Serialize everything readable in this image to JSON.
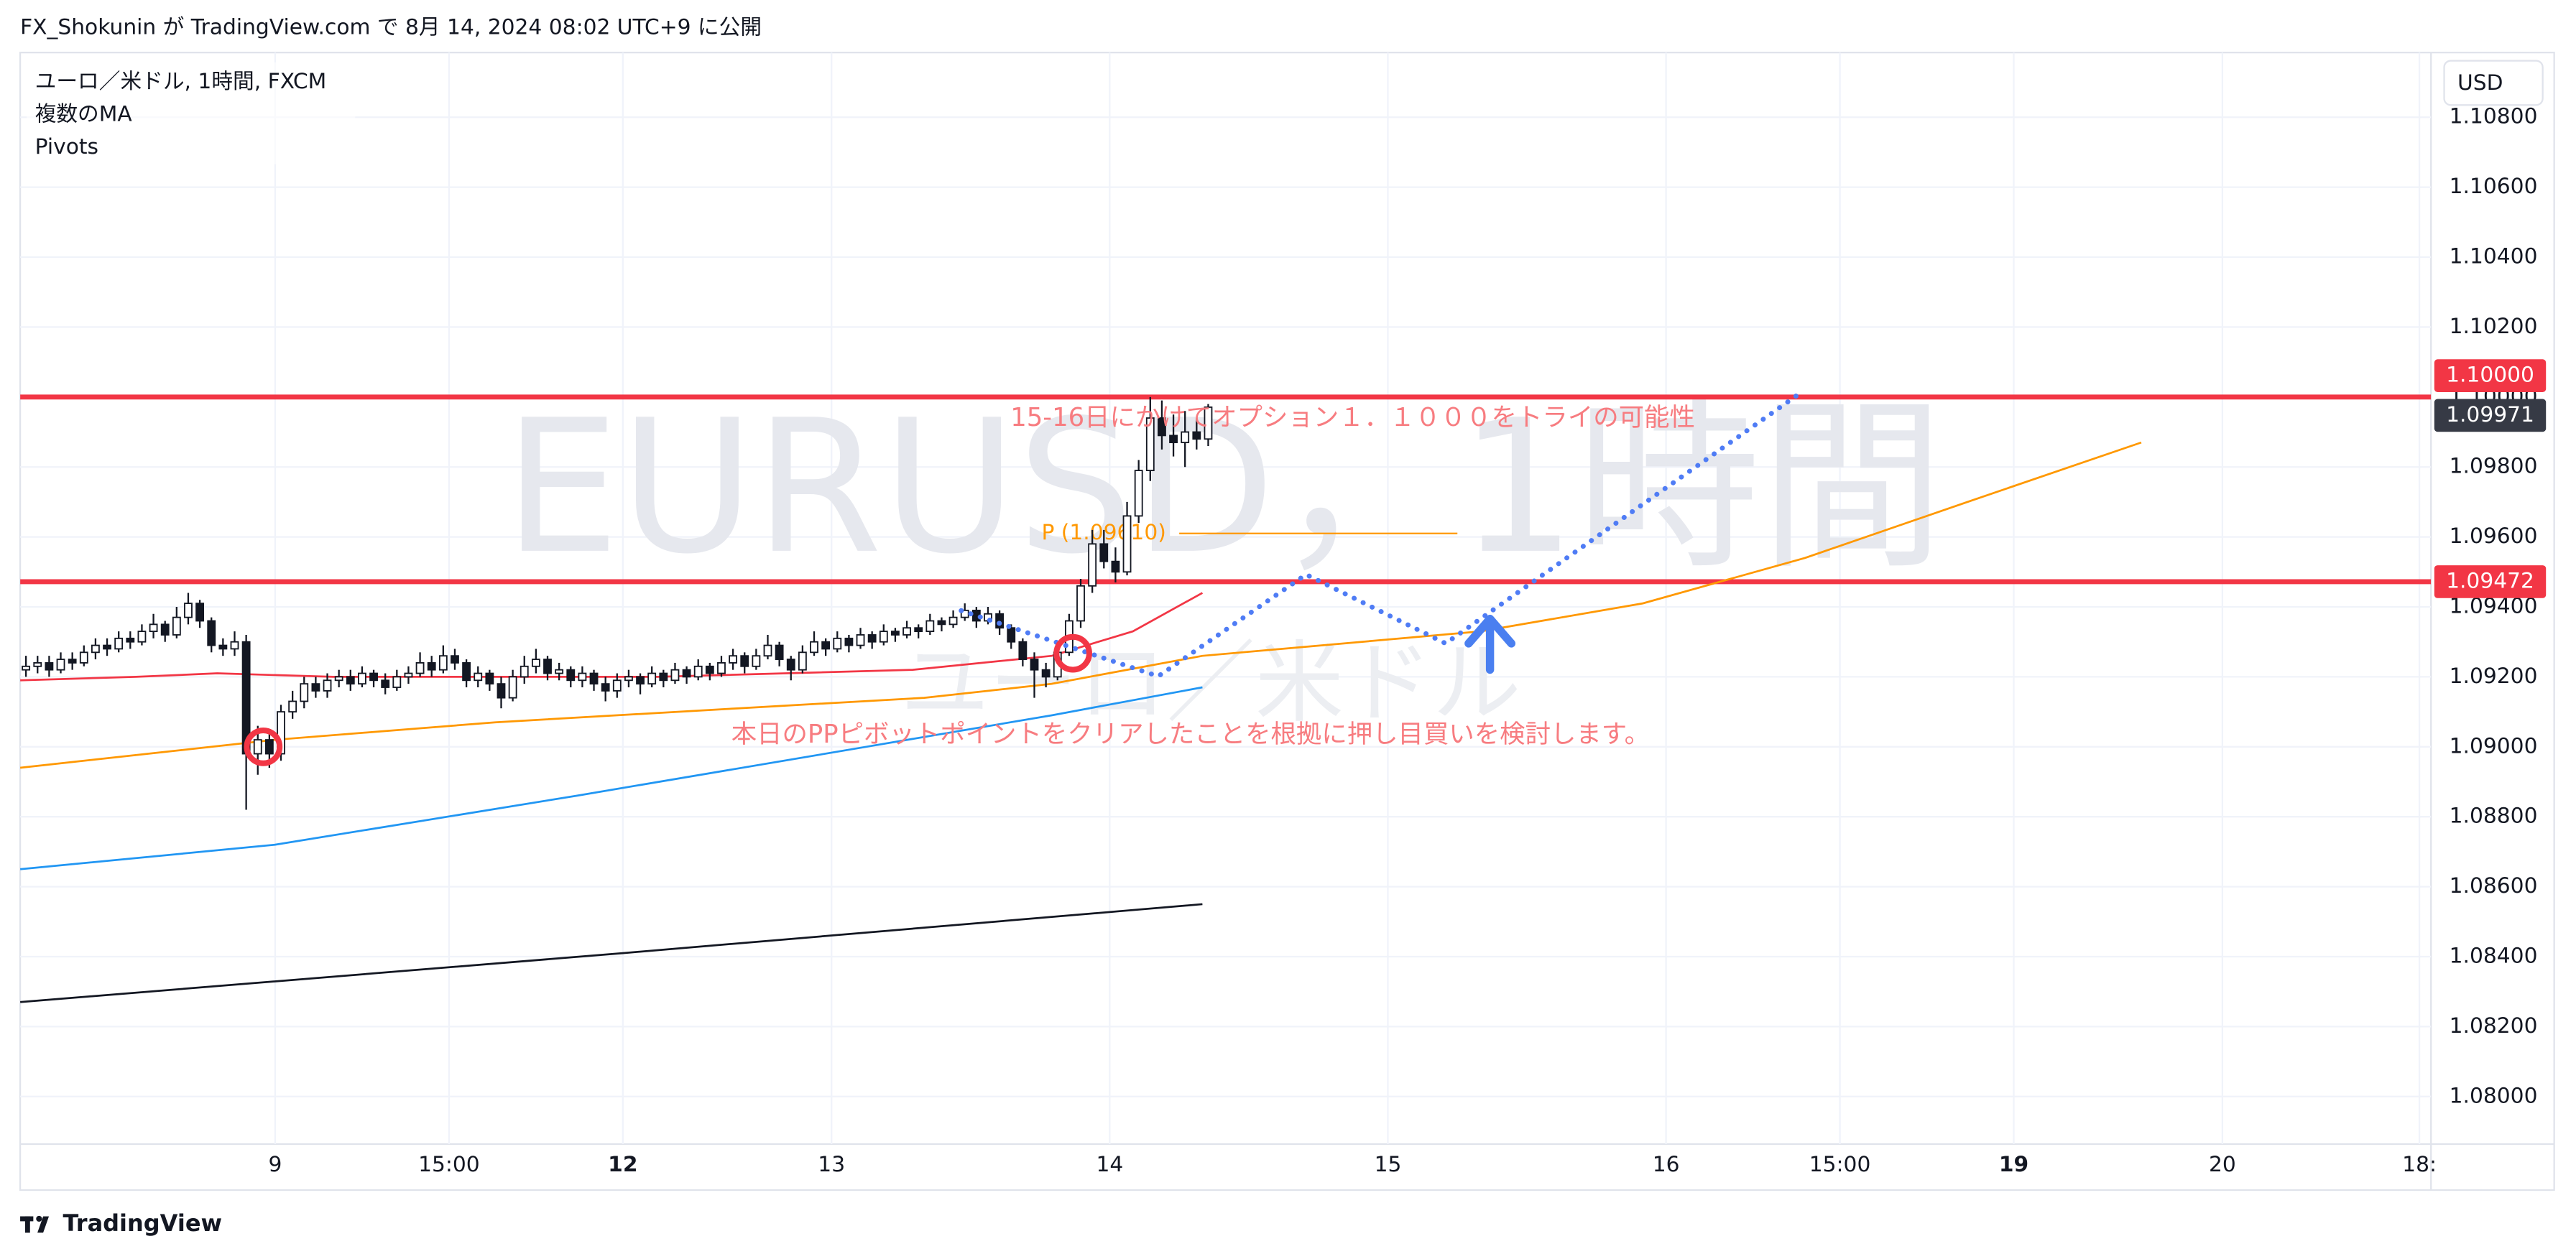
{
  "chart_data": {
    "type": "candlestick",
    "published_by": "FX_Shokunin が TradingView.com で 8月 14, 2024 08:02 UTC+9 に公開",
    "symbol_legend": "ユーロ／米ドル, 1時間, FXCM",
    "indicators": [
      "複数のMA",
      "Pivots"
    ],
    "currency": "USD",
    "watermark": "EURUSD，1時間",
    "watermark_sub": "ユーロ／米ドル",
    "brand": "TradingView",
    "annotations": [
      "15-16日にかけてオプション１．１０００をトライの可能性",
      "本日のPPピボットポイントをクリアしたことを根拠に押し目買いを検討します。"
    ],
    "up_color": "#ffffff",
    "down_color": "#131722",
    "xlim": [
      0,
      208
    ],
    "xticks": [
      {
        "value": 22,
        "label": "9"
      },
      {
        "value": 37,
        "label": "15:00"
      },
      {
        "value": 52,
        "label": "12",
        "bold": true
      },
      {
        "value": 70,
        "label": "13"
      },
      {
        "value": 94,
        "label": "14"
      },
      {
        "value": 118,
        "label": "15"
      },
      {
        "value": 142,
        "label": "16"
      },
      {
        "value": 157,
        "label": "15:00"
      },
      {
        "value": 172,
        "label": "19",
        "bold": true
      },
      {
        "value": 190,
        "label": "20"
      },
      {
        "value": 207,
        "label": "18:"
      }
    ],
    "ylim": [
      1.07864,
      1.10985
    ],
    "yticks": [
      {
        "value": 1.08,
        "label": "1.08000"
      },
      {
        "value": 1.082,
        "label": "1.08200"
      },
      {
        "value": 1.084,
        "label": "1.08400"
      },
      {
        "value": 1.086,
        "label": "1.08600"
      },
      {
        "value": 1.088,
        "label": "1.08800"
      },
      {
        "value": 1.09,
        "label": "1.09000"
      },
      {
        "value": 1.092,
        "label": "1.09200"
      },
      {
        "value": 1.094,
        "label": "1.09400"
      },
      {
        "value": 1.096,
        "label": "1.09600"
      },
      {
        "value": 1.098,
        "label": "1.09800"
      },
      {
        "value": 1.1,
        "label": "1.10000"
      },
      {
        "value": 1.102,
        "label": "1.10200"
      },
      {
        "value": 1.104,
        "label": "1.10400"
      },
      {
        "value": 1.106,
        "label": "1.10600"
      },
      {
        "value": 1.108,
        "label": "1.10800"
      }
    ],
    "grid": true,
    "candles": [
      [
        1.0922,
        1.0926,
        1.092,
        1.0923
      ],
      [
        1.0923,
        1.0926,
        1.0921,
        1.0924
      ],
      [
        1.0924,
        1.0926,
        1.092,
        1.0922
      ],
      [
        1.0922,
        1.0927,
        1.0921,
        1.0925
      ],
      [
        1.0925,
        1.0927,
        1.0922,
        1.0924
      ],
      [
        1.0924,
        1.0929,
        1.0923,
        1.0927
      ],
      [
        1.0927,
        1.0931,
        1.0925,
        1.0929
      ],
      [
        1.0929,
        1.0931,
        1.0926,
        1.0928
      ],
      [
        1.0928,
        1.0933,
        1.0927,
        1.0931
      ],
      [
        1.0931,
        1.0933,
        1.0928,
        1.093
      ],
      [
        1.093,
        1.0935,
        1.0929,
        1.0933
      ],
      [
        1.0933,
        1.0938,
        1.0931,
        1.0935
      ],
      [
        1.0935,
        1.0936,
        1.093,
        1.0932
      ],
      [
        1.0932,
        1.094,
        1.0931,
        1.0937
      ],
      [
        1.0937,
        1.0944,
        1.0935,
        1.0941
      ],
      [
        1.0941,
        1.0942,
        1.0934,
        1.0936
      ],
      [
        1.0936,
        1.0937,
        1.0927,
        1.0929
      ],
      [
        1.0929,
        1.0931,
        1.0926,
        1.0928
      ],
      [
        1.0928,
        1.0933,
        1.0926,
        1.093
      ],
      [
        1.093,
        1.0932,
        1.0882,
        1.0898
      ],
      [
        1.0898,
        1.0906,
        1.0892,
        1.0902
      ],
      [
        1.0902,
        1.0905,
        1.0894,
        1.0898
      ],
      [
        1.0898,
        1.0912,
        1.0896,
        1.091
      ],
      [
        1.091,
        1.0916,
        1.0908,
        1.0913
      ],
      [
        1.0913,
        1.092,
        1.0911,
        1.0918
      ],
      [
        1.0918,
        1.092,
        1.0914,
        1.0916
      ],
      [
        1.0916,
        1.0921,
        1.0914,
        1.0919
      ],
      [
        1.0919,
        1.0922,
        1.0917,
        1.092
      ],
      [
        1.092,
        1.0922,
        1.0916,
        1.0918
      ],
      [
        1.0918,
        1.0923,
        1.0917,
        1.0921
      ],
      [
        1.0921,
        1.0922,
        1.0917,
        1.0919
      ],
      [
        1.0919,
        1.0921,
        1.0915,
        1.0917
      ],
      [
        1.0917,
        1.0922,
        1.0916,
        1.092
      ],
      [
        1.092,
        1.0923,
        1.0918,
        1.0921
      ],
      [
        1.0921,
        1.0927,
        1.092,
        1.0924
      ],
      [
        1.0924,
        1.0926,
        1.092,
        1.0922
      ],
      [
        1.0922,
        1.0929,
        1.0921,
        1.0926
      ],
      [
        1.0926,
        1.0928,
        1.0922,
        1.0924
      ],
      [
        1.0924,
        1.0925,
        1.0917,
        1.0919
      ],
      [
        1.0919,
        1.0923,
        1.0917,
        1.0921
      ],
      [
        1.0921,
        1.0922,
        1.0916,
        1.0918
      ],
      [
        1.0918,
        1.092,
        1.0911,
        1.0914
      ],
      [
        1.0914,
        1.0922,
        1.0913,
        1.092
      ],
      [
        1.092,
        1.0926,
        1.0918,
        1.0923
      ],
      [
        1.0923,
        1.0928,
        1.0921,
        1.0925
      ],
      [
        1.0925,
        1.0926,
        1.0919,
        1.0921
      ],
      [
        1.0921,
        1.0924,
        1.0919,
        1.0922
      ],
      [
        1.0922,
        1.0923,
        1.0917,
        1.0919
      ],
      [
        1.0919,
        1.0923,
        1.0917,
        1.0921
      ],
      [
        1.0921,
        1.0922,
        1.0916,
        1.0918
      ],
      [
        1.0918,
        1.092,
        1.0913,
        1.0916
      ],
      [
        1.0916,
        1.0921,
        1.0914,
        1.0919
      ],
      [
        1.0919,
        1.0922,
        1.0917,
        1.092
      ],
      [
        1.092,
        1.0921,
        1.0915,
        1.0918
      ],
      [
        1.0918,
        1.0923,
        1.0917,
        1.0921
      ],
      [
        1.0921,
        1.0922,
        1.0917,
        1.0919
      ],
      [
        1.0919,
        1.0924,
        1.0918,
        1.0922
      ],
      [
        1.0922,
        1.0923,
        1.0918,
        1.092
      ],
      [
        1.092,
        1.0925,
        1.0919,
        1.0923
      ],
      [
        1.0923,
        1.0924,
        1.0919,
        1.0921
      ],
      [
        1.0921,
        1.0926,
        1.092,
        1.0924
      ],
      [
        1.0924,
        1.0928,
        1.0922,
        1.0926
      ],
      [
        1.0926,
        1.0927,
        1.0921,
        1.0923
      ],
      [
        1.0923,
        1.0928,
        1.0922,
        1.0926
      ],
      [
        1.0926,
        1.0932,
        1.0925,
        1.0929
      ],
      [
        1.0929,
        1.093,
        1.0923,
        1.0925
      ],
      [
        1.0925,
        1.0926,
        1.0919,
        1.0922
      ],
      [
        1.0922,
        1.0929,
        1.0921,
        1.0927
      ],
      [
        1.0927,
        1.0933,
        1.0926,
        1.093
      ],
      [
        1.093,
        1.0931,
        1.0926,
        1.0928
      ],
      [
        1.0928,
        1.0933,
        1.0927,
        1.0931
      ],
      [
        1.0931,
        1.0932,
        1.0927,
        1.0929
      ],
      [
        1.0929,
        1.0934,
        1.0928,
        1.0932
      ],
      [
        1.0932,
        1.0933,
        1.0928,
        1.093
      ],
      [
        1.093,
        1.0935,
        1.0929,
        1.0933
      ],
      [
        1.0933,
        1.0934,
        1.093,
        1.0932
      ],
      [
        1.0932,
        1.0936,
        1.0931,
        1.0934
      ],
      [
        1.0934,
        1.0935,
        1.0931,
        1.0933
      ],
      [
        1.0933,
        1.0938,
        1.0932,
        1.0936
      ],
      [
        1.0936,
        1.0937,
        1.0933,
        1.0935
      ],
      [
        1.0935,
        1.0939,
        1.0934,
        1.0937
      ],
      [
        1.0937,
        1.0941,
        1.0936,
        1.0939
      ],
      [
        1.0939,
        1.094,
        1.0934,
        1.0936
      ],
      [
        1.0936,
        1.094,
        1.0935,
        1.0938
      ],
      [
        1.0938,
        1.0939,
        1.0932,
        1.0934
      ],
      [
        1.0934,
        1.0935,
        1.0928,
        1.093
      ],
      [
        1.093,
        1.0931,
        1.0923,
        1.0925
      ],
      [
        1.0925,
        1.0927,
        1.0914,
        1.0922
      ],
      [
        1.0922,
        1.0924,
        1.0917,
        1.092
      ],
      [
        1.092,
        1.0929,
        1.0919,
        1.0927
      ],
      [
        1.0927,
        1.0938,
        1.0926,
        1.0936
      ],
      [
        1.0936,
        1.0948,
        1.0934,
        1.0946
      ],
      [
        1.0946,
        1.0962,
        1.0944,
        1.0958
      ],
      [
        1.0958,
        1.0962,
        1.0951,
        1.0953
      ],
      [
        1.0953,
        1.0957,
        1.0947,
        1.095
      ],
      [
        1.095,
        1.097,
        1.0949,
        1.0966
      ],
      [
        1.0966,
        1.0982,
        1.0964,
        1.0979
      ],
      [
        1.0979,
        1.1,
        1.0976,
        1.0994
      ],
      [
        1.0994,
        1.0999,
        1.0985,
        1.0989
      ],
      [
        1.0989,
        1.0995,
        1.0983,
        1.0987
      ],
      [
        1.0987,
        1.0996,
        1.098,
        1.099
      ],
      [
        1.099,
        1.0994,
        1.0985,
        1.0988
      ],
      [
        1.0988,
        1.0998,
        1.0986,
        1.09971
      ]
    ],
    "series": [
      {
        "color": "#f23645",
        "x": [
          0,
          10,
          17,
          27,
          55,
          77,
          89,
          96,
          102
        ],
        "values": [
          1.0919,
          1.092,
          1.0921,
          1.092,
          1.092,
          1.0922,
          1.0926,
          1.0933,
          1.0944
        ]
      },
      {
        "color": "#ff9800",
        "x": [
          0,
          22,
          41,
          62,
          78,
          89,
          102,
          126,
          140,
          154,
          168,
          183
        ],
        "values": [
          1.0894,
          1.0902,
          1.0907,
          1.0911,
          1.0914,
          1.0918,
          1.0926,
          1.0933,
          1.0941,
          1.0954,
          1.097,
          1.0987
        ]
      },
      {
        "color": "#2196f3",
        "x": [
          0,
          22,
          48,
          73,
          89,
          102
        ],
        "values": [
          1.0865,
          1.0872,
          1.0886,
          1.09,
          1.0909,
          1.0917
        ]
      },
      {
        "color": "#131722",
        "x": [
          0,
          52,
          102
        ],
        "values": [
          1.0827,
          1.0841,
          1.0855
        ]
      }
    ],
    "levels": [
      {
        "value": 1.1,
        "label": "1.10000",
        "color": "#f23645"
      },
      {
        "value": 1.09472,
        "label": "1.09472",
        "color": "#f23645"
      }
    ],
    "last_price": {
      "value": 1.09971,
      "label": "1.09971",
      "color": "#363a45"
    },
    "pivot": {
      "value": 1.0961,
      "label": "P (1.09610)",
      "x": [
        100,
        124
      ],
      "color": "#ff9800"
    }
  }
}
